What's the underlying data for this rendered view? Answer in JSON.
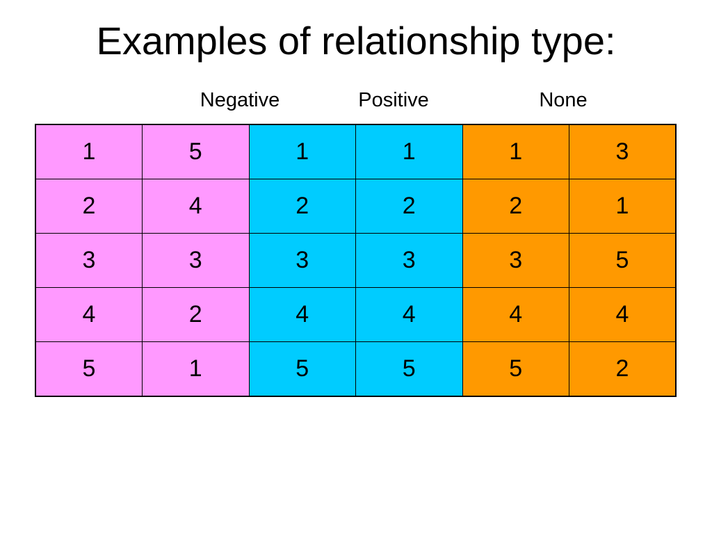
{
  "slide": {
    "title": "Examples of relationship type:"
  },
  "groups": {
    "negative": {
      "label": "Negative",
      "color": "#ff99ff"
    },
    "positive": {
      "label": "Positive",
      "color": "#00ccff"
    },
    "none": {
      "label": "None",
      "color": "#ff9900"
    }
  },
  "table": {
    "rows": [
      [
        "1",
        "5",
        "1",
        "1",
        "1",
        "3"
      ],
      [
        "2",
        "4",
        "2",
        "2",
        "2",
        "1"
      ],
      [
        "3",
        "3",
        "3",
        "3",
        "3",
        "5"
      ],
      [
        "4",
        "2",
        "4",
        "4",
        "4",
        "4"
      ],
      [
        "5",
        "1",
        "5",
        "5",
        "5",
        "2"
      ]
    ]
  }
}
